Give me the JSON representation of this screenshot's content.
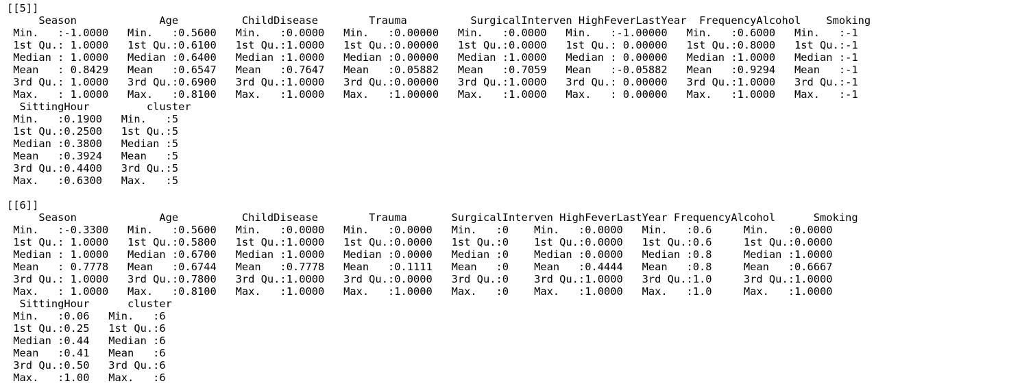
{
  "console_lines": [
    "[[5]]",
    "     Season             Age          ChildDisease        Trauma          SurgicalInterven HighFeverLastYear  FrequencyAlcohol    Smoking",
    " Min.   :-1.0000   Min.   :0.5600   Min.   :0.0000   Min.   :0.00000   Min.   :0.0000   Min.   :-1.00000   Min.   :0.6000   Min.   :-1",
    " 1st Qu.: 1.0000   1st Qu.:0.6100   1st Qu.:1.0000   1st Qu.:0.00000   1st Qu.:0.0000   1st Qu.: 0.00000   1st Qu.:0.8000   1st Qu.:-1",
    " Median : 1.0000   Median :0.6400   Median :1.0000   Median :0.00000   Median :1.0000   Median : 0.00000   Median :1.0000   Median :-1",
    " Mean   : 0.8429   Mean   :0.6547   Mean   :0.7647   Mean   :0.05882   Mean   :0.7059   Mean   :-0.05882   Mean   :0.9294   Mean   :-1",
    " 3rd Qu.: 1.0000   3rd Qu.:0.6900   3rd Qu.:1.0000   3rd Qu.:0.00000   3rd Qu.:1.0000   3rd Qu.: 0.00000   3rd Qu.:1.0000   3rd Qu.:-1",
    " Max.   : 1.0000   Max.   :0.8100   Max.   :1.0000   Max.   :1.00000   Max.   :1.0000   Max.   : 0.00000   Max.   :1.0000   Max.   :-1",
    "  SittingHour         cluster",
    " Min.   :0.1900   Min.   :5",
    " 1st Qu.:0.2500   1st Qu.:5",
    " Median :0.3800   Median :5",
    " Mean   :0.3924   Mean   :5",
    " 3rd Qu.:0.4400   3rd Qu.:5",
    " Max.   :0.6300   Max.   :5",
    "",
    "[[6]]",
    "     Season             Age          ChildDisease        Trauma       SurgicalInterven HighFeverLastYear FrequencyAlcohol      Smoking",
    " Min.   :-0.3300   Min.   :0.5600   Min.   :0.0000   Min.   :0.0000   Min.   :0    Min.   :0.0000   Min.   :0.6     Min.   :0.0000",
    " 1st Qu.: 1.0000   1st Qu.:0.5800   1st Qu.:1.0000   1st Qu.:0.0000   1st Qu.:0    1st Qu.:0.0000   1st Qu.:0.6     1st Qu.:0.0000",
    " Median : 1.0000   Median :0.6700   Median :1.0000   Median :0.0000   Median :0    Median :0.0000   Median :0.8     Median :1.0000",
    " Mean   : 0.7778   Mean   :0.6744   Mean   :0.7778   Mean   :0.1111   Mean   :0    Mean   :0.4444   Mean   :0.8     Mean   :0.6667",
    " 3rd Qu.: 1.0000   3rd Qu.:0.7800   3rd Qu.:1.0000   3rd Qu.:0.0000   3rd Qu.:0    3rd Qu.:1.0000   3rd Qu.:1.0     3rd Qu.:1.0000",
    " Max.   : 1.0000   Max.   :0.8100   Max.   :1.0000   Max.   :1.0000   Max.   :0    Max.   :1.0000   Max.   :1.0     Max.   :1.0000",
    "  SittingHour      cluster",
    " Min.   :0.06   Min.   :6",
    " 1st Qu.:0.25   1st Qu.:6",
    " Median :0.44   Median :6",
    " Mean   :0.41   Mean   :6",
    " 3rd Qu.:0.50   3rd Qu.:6",
    " Max.   :1.00   Max.   :6"
  ]
}
